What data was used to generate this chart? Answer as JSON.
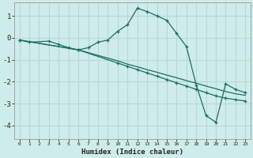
{
  "xlabel": "Humidex (Indice chaleur)",
  "background_color": "#ceecea",
  "grid_color": "#b8d8d4",
  "line_color": "#1a6e64",
  "xlim": [
    -0.5,
    23.5
  ],
  "ylim": [
    -4.6,
    1.6
  ],
  "yticks": [
    -4,
    -3,
    -2,
    -1,
    0,
    1
  ],
  "xticks": [
    0,
    1,
    2,
    3,
    4,
    5,
    6,
    7,
    8,
    9,
    10,
    11,
    12,
    13,
    14,
    15,
    16,
    17,
    18,
    19,
    20,
    21,
    22,
    23
  ],
  "series1_x": [
    0,
    1,
    3,
    4,
    5,
    6,
    7,
    8,
    9,
    10,
    11,
    12,
    13,
    14,
    15,
    16,
    17,
    18,
    19,
    20,
    21,
    22,
    23
  ],
  "series1_y": [
    -0.1,
    -0.2,
    -0.15,
    -0.3,
    -0.45,
    -0.55,
    -0.45,
    -0.2,
    -0.1,
    0.3,
    0.6,
    1.35,
    1.2,
    1.0,
    0.8,
    0.2,
    -0.4,
    -2.15,
    -3.55,
    -3.85,
    -2.1,
    -2.35,
    -2.5
  ],
  "series2_x": [
    0,
    6,
    10,
    11,
    12,
    13,
    14,
    15,
    16,
    17,
    18,
    19,
    20,
    21,
    22,
    23
  ],
  "series2_y": [
    -0.1,
    -0.55,
    -1.15,
    -1.3,
    -1.45,
    -1.6,
    -1.75,
    -1.9,
    -2.05,
    -2.2,
    -2.35,
    -2.5,
    -2.65,
    -2.75,
    -2.82,
    -2.88
  ],
  "series3_x": [
    0,
    6,
    10,
    11,
    12,
    13,
    14,
    15,
    16,
    17,
    18,
    19,
    20,
    21,
    22,
    23
  ],
  "series3_y": [
    -0.1,
    -0.55,
    -1.05,
    -1.2,
    -1.32,
    -1.45,
    -1.57,
    -1.7,
    -1.82,
    -1.95,
    -2.07,
    -2.2,
    -2.32,
    -2.45,
    -2.55,
    -2.62
  ]
}
